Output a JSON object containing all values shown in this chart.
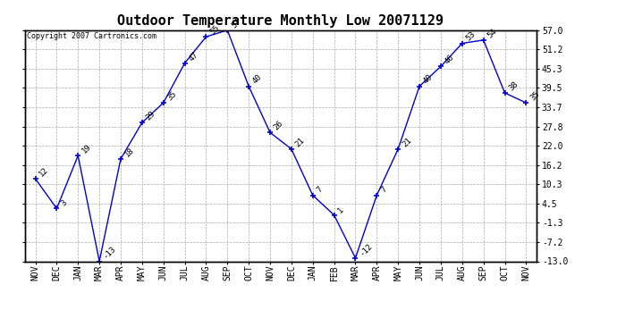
{
  "title": "Outdoor Temperature Monthly Low 20071129",
  "copyright": "Copyright 2007 Cartronics.com",
  "x_labels": [
    "NOV",
    "DEC",
    "JAN",
    "MAR",
    "APR",
    "MAY",
    "JUN",
    "JUL",
    "AUG",
    "SEP",
    "OCT",
    "NOV",
    "DEC",
    "JAN",
    "FEB",
    "MAR",
    "APR",
    "MAY",
    "JUN",
    "JUL",
    "AUG",
    "SEP",
    "OCT",
    "NOV"
  ],
  "y_values": [
    12,
    3,
    19,
    -13,
    18,
    29,
    35,
    47,
    55,
    57,
    40,
    26,
    21,
    7,
    1,
    -12,
    7,
    21,
    40,
    46,
    53,
    54,
    38,
    35
  ],
  "y_tick_vals": [
    -13.0,
    -7.2,
    -1.3,
    4.5,
    10.3,
    16.2,
    22.0,
    27.8,
    33.7,
    39.5,
    45.3,
    51.2,
    57.0
  ],
  "y_tick_labels": [
    "-13.0",
    "-7.2",
    "-1.3",
    "4.5",
    "10.3",
    "16.2",
    "22.0",
    "27.8",
    "33.7",
    "39.5",
    "45.3",
    "51.2",
    "57.0"
  ],
  "ylim_min": -13.0,
  "ylim_max": 57.0,
  "line_color": "#0000CC",
  "bg_color": "#ffffff",
  "grid_color": "#aaaaaa",
  "title_fontsize": 11,
  "label_fontsize": 7,
  "annot_fontsize": 6.5
}
